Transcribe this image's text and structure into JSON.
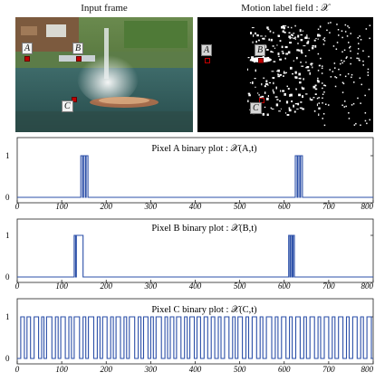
{
  "images": {
    "input_title": "Input frame",
    "label_title": "Motion label field : 𝒳",
    "points": [
      "A",
      "B",
      "C"
    ]
  },
  "chart_data": [
    {
      "type": "line",
      "title": "Pixel  A  binary plot : 𝒳(A,t)",
      "xlim": [
        0,
        800
      ],
      "ylim": [
        0,
        1
      ],
      "xticks": [
        0,
        100,
        200,
        300,
        400,
        500,
        600,
        700,
        800
      ],
      "yticks": [
        0,
        1
      ],
      "grid": false,
      "pulses": [
        [
          143,
          147
        ],
        [
          149,
          153
        ],
        [
          155,
          159
        ],
        [
          625,
          629
        ],
        [
          631,
          635
        ],
        [
          637,
          641
        ]
      ]
    },
    {
      "type": "line",
      "title": "Pixel  B  binary plot : 𝒳(B,t)",
      "xlim": [
        0,
        800
      ],
      "ylim": [
        0,
        1
      ],
      "xticks": [
        0,
        100,
        200,
        300,
        400,
        500,
        600,
        700,
        800
      ],
      "yticks": [
        0,
        1
      ],
      "grid": false,
      "pulses": [
        [
          128,
          131
        ],
        [
          133,
          148
        ],
        [
          610,
          613
        ],
        [
          615,
          618
        ],
        [
          620,
          623
        ]
      ]
    },
    {
      "type": "line",
      "title": "Pixel  C  binary plot : 𝒳(C,t)",
      "xlim": [
        0,
        800
      ],
      "ylim": [
        0,
        1
      ],
      "xticks": [
        0,
        100,
        200,
        300,
        400,
        500,
        600,
        700,
        800
      ],
      "yticks": [
        0,
        1
      ],
      "grid": false,
      "pulses": [
        [
          8,
          16
        ],
        [
          22,
          30
        ],
        [
          38,
          48
        ],
        [
          55,
          60
        ],
        [
          66,
          78
        ],
        [
          86,
          92
        ],
        [
          98,
          108
        ],
        [
          116,
          122
        ],
        [
          128,
          140
        ],
        [
          148,
          154
        ],
        [
          160,
          172
        ],
        [
          180,
          186
        ],
        [
          192,
          202
        ],
        [
          210,
          216
        ],
        [
          222,
          232
        ],
        [
          240,
          246
        ],
        [
          252,
          264
        ],
        [
          272,
          278
        ],
        [
          284,
          294
        ],
        [
          300,
          306
        ],
        [
          312,
          324
        ],
        [
          332,
          338
        ],
        [
          344,
          352
        ],
        [
          358,
          368
        ],
        [
          376,
          382
        ],
        [
          388,
          398
        ],
        [
          404,
          412
        ],
        [
          420,
          428
        ],
        [
          436,
          444
        ],
        [
          452,
          458
        ],
        [
          466,
          476
        ],
        [
          484,
          490
        ],
        [
          496,
          506
        ],
        [
          514,
          520
        ],
        [
          528,
          538
        ],
        [
          546,
          552
        ],
        [
          560,
          572
        ],
        [
          580,
          586
        ],
        [
          594,
          604
        ],
        [
          612,
          618
        ],
        [
          626,
          636
        ],
        [
          644,
          650
        ],
        [
          658,
          668
        ],
        [
          676,
          682
        ],
        [
          690,
          700
        ],
        [
          708,
          714
        ],
        [
          722,
          732
        ],
        [
          740,
          746
        ],
        [
          754,
          764
        ],
        [
          772,
          778
        ],
        [
          786,
          796
        ]
      ]
    }
  ]
}
